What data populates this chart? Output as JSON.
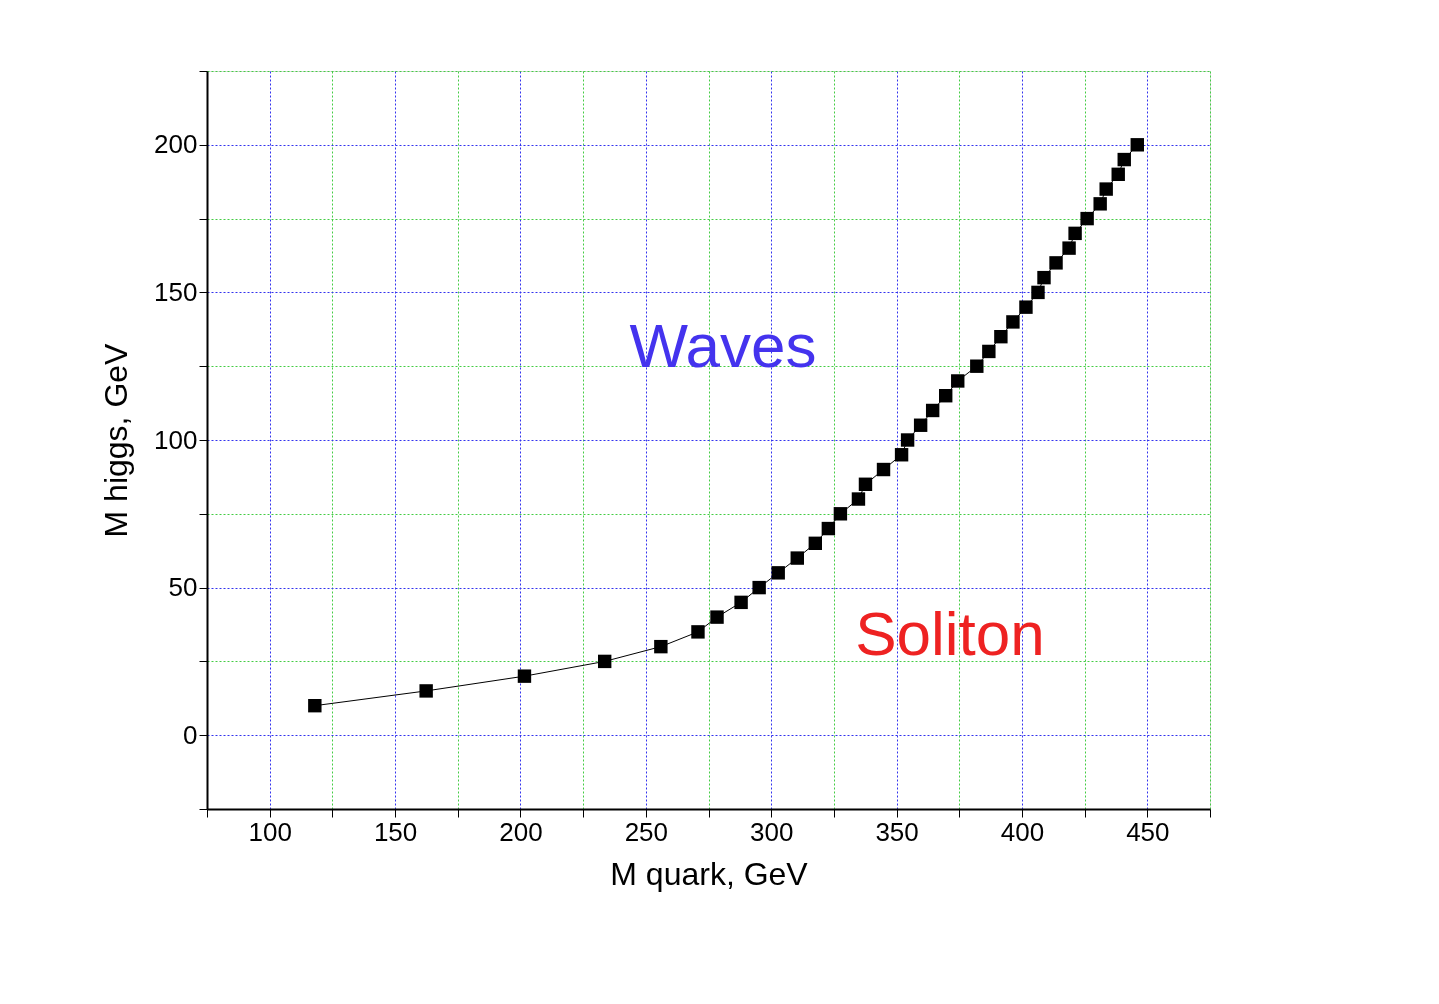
{
  "chart_data": {
    "type": "line",
    "xlabel": "M quark, GeV",
    "ylabel": "M higgs, GeV",
    "x": [
      118,
      162.4,
      201.6,
      233.6,
      256,
      270.8,
      278.4,
      288,
      295.2,
      302.8,
      310.4,
      317.6,
      322.8,
      327.6,
      334.8,
      337.6,
      344.8,
      352,
      354.4,
      359.6,
      364.4,
      369.6,
      374.4,
      382,
      386.8,
      391.6,
      396.4,
      401.6,
      406.4,
      408.8,
      413.6,
      418.8,
      421.2,
      426,
      431.2,
      433.6,
      438.4,
      440.8,
      446
    ],
    "series": [
      {
        "color": "#000000",
        "values": [
          10,
          15,
          20,
          25,
          30,
          35,
          40,
          45,
          50,
          55,
          60,
          65,
          70,
          75,
          80,
          85,
          90,
          95,
          100,
          105,
          110,
          115,
          120,
          125,
          130,
          135,
          140,
          145,
          150,
          155,
          160,
          165,
          170,
          175,
          180,
          185,
          190,
          195,
          200
        ]
      }
    ],
    "marker": "square",
    "line_style": "solid",
    "grid": true,
    "xlim": [
      75,
      475
    ],
    "ylim": [
      -25,
      225
    ],
    "xticks": [
      {
        "value": 75,
        "label": null
      },
      100,
      {
        "value": 125,
        "label": null
      },
      150,
      {
        "value": 175,
        "label": null
      },
      200,
      {
        "value": 225,
        "label": null
      },
      250,
      {
        "value": 275,
        "label": null
      },
      300,
      {
        "value": 325,
        "label": null
      },
      350,
      {
        "value": 375,
        "label": null
      },
      400,
      {
        "value": 425,
        "label": null
      },
      450,
      {
        "value": 475,
        "label": null
      }
    ],
    "yticks": [
      {
        "value": -25,
        "label": null
      },
      0,
      {
        "value": 25,
        "label": null
      },
      50,
      {
        "value": 75,
        "label": null
      },
      100,
      {
        "value": 125,
        "label": null
      },
      150,
      {
        "value": 175,
        "label": null
      },
      200,
      {
        "value": 225,
        "label": null
      }
    ],
    "annotations": [
      "Waves",
      "Soliton"
    ]
  }
}
